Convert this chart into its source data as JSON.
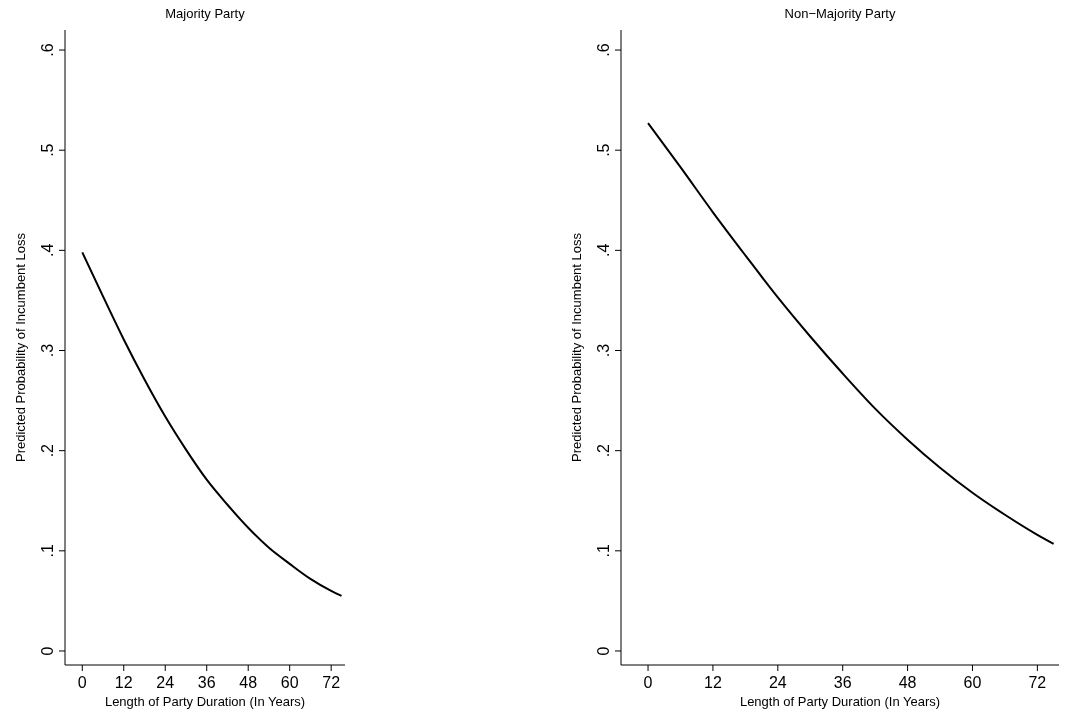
{
  "chart_data": [
    {
      "type": "line",
      "title": "Majority Party",
      "xlabel": "Length of Party Duration (In Years)",
      "ylabel": "Predicted Probability of Incumbent Loss",
      "x": [
        0,
        6,
        12,
        18,
        24,
        30,
        36,
        42,
        48,
        54,
        60,
        66,
        72,
        75
      ],
      "series": [
        {
          "color": "#000000",
          "values": [
            0.398,
            0.354,
            0.311,
            0.271,
            0.234,
            0.201,
            0.171,
            0.146,
            0.123,
            0.103,
            0.087,
            0.072,
            0.06,
            0.055
          ]
        }
      ],
      "xlim": [
        -5,
        76
      ],
      "xticks": [
        0,
        12,
        24,
        36,
        48,
        60,
        72
      ],
      "ylim": [
        -0.014,
        0.62
      ],
      "yticks": [
        {
          "value": 0,
          "label": "0"
        },
        {
          "value": 0.1,
          "label": ".1"
        },
        {
          "value": 0.2,
          "label": ".2"
        },
        {
          "value": 0.3,
          "label": ".3"
        },
        {
          "value": 0.4,
          "label": ".4"
        },
        {
          "value": 0.5,
          "label": ".5"
        },
        {
          "value": 0.6,
          "label": ".6"
        }
      ],
      "line_style": "solid"
    },
    {
      "type": "line",
      "title": "Non−Majority Party",
      "xlabel": "Length of Party Duration (In Years)",
      "ylabel": "Predicted Probability of Incumbent Loss",
      "x": [
        0,
        6,
        12,
        18,
        24,
        30,
        36,
        42,
        48,
        54,
        60,
        66,
        72,
        75
      ],
      "series": [
        {
          "color": "#000000",
          "values": [
            0.527,
            0.483,
            0.438,
            0.395,
            0.353,
            0.314,
            0.277,
            0.242,
            0.211,
            0.183,
            0.158,
            0.136,
            0.116,
            0.107
          ]
        }
      ],
      "xlim": [
        -5,
        76
      ],
      "xticks": [
        0,
        12,
        24,
        36,
        48,
        60,
        72
      ],
      "ylim": [
        -0.014,
        0.62
      ],
      "yticks": [
        {
          "value": 0,
          "label": "0"
        },
        {
          "value": 0.1,
          "label": ".1"
        },
        {
          "value": 0.2,
          "label": ".2"
        },
        {
          "value": 0.3,
          "label": ".3"
        },
        {
          "value": 0.4,
          "label": ".4"
        },
        {
          "value": 0.5,
          "label": ".5"
        },
        {
          "value": 0.6,
          "label": ".6"
        }
      ],
      "line_style": "solid"
    }
  ]
}
